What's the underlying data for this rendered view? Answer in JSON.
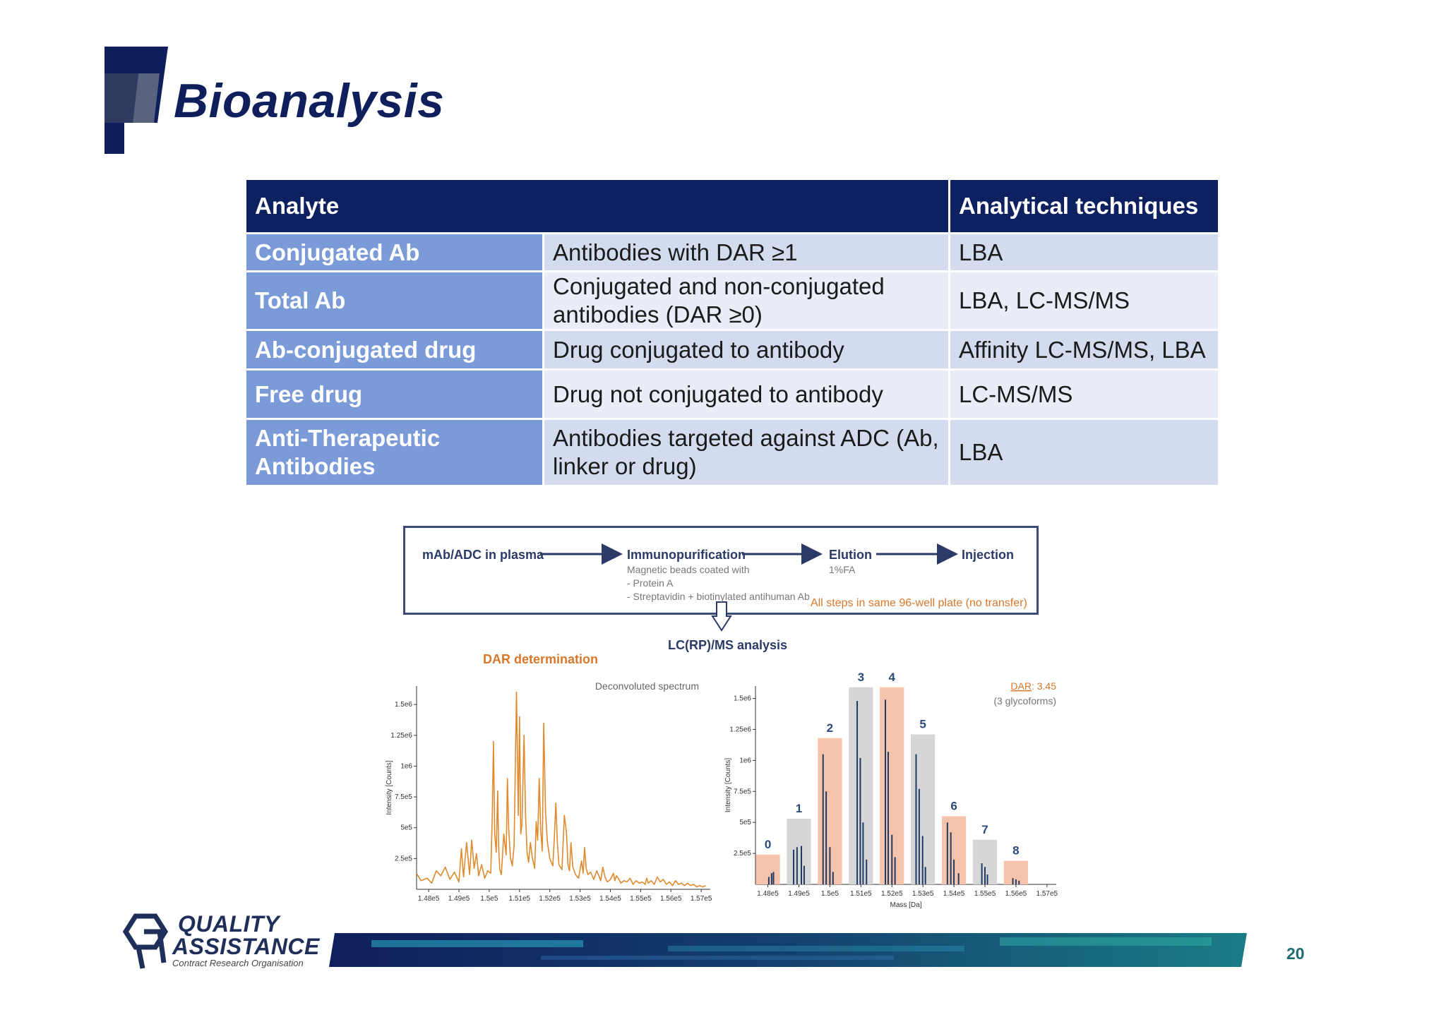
{
  "slide": {
    "title": "Bioanalysis",
    "page_number": "20",
    "brand": {
      "line1": "QUALITY",
      "line2": "ASSISTANCE",
      "tagline": "Contract Research Organisation"
    }
  },
  "table": {
    "headers": [
      "Analyte",
      "Analytical techniques"
    ],
    "rows": [
      {
        "name": "Conjugated Ab",
        "desc": "Antibodies with DAR ≥1",
        "tech": "LBA"
      },
      {
        "name": "Total Ab",
        "desc": "Conjugated and non-conjugated antibodies (DAR ≥0)",
        "tech": "LBA, LC-MS/MS"
      },
      {
        "name": "Ab-conjugated drug",
        "desc": "Drug conjugated to antibody",
        "tech": "Affinity LC-MS/MS, LBA"
      },
      {
        "name": "Free drug",
        "desc": "Drug not conjugated to antibody",
        "tech": "LC-MS/MS"
      },
      {
        "name": "Anti-Therapeutic Antibodies",
        "desc": "Antibodies targeted  against ADC (Ab, linker or drug)",
        "tech": "LBA"
      }
    ]
  },
  "workflow": {
    "step1": "mAb/ADC in plasma",
    "step2": "Immunopurification",
    "step2_sub": [
      "Magnetic beads coated with",
      "- Protein A",
      "- Streptavidin + biotinylated antihuman Ab"
    ],
    "step3": "Elution",
    "step3_sub": "1%FA",
    "step4": "Injection",
    "note": "All steps in same 96-well plate (no transfer)",
    "analysis": "LC(RP)/MS analysis",
    "dar_label": "DAR determination"
  },
  "chart_data": [
    {
      "type": "line",
      "title": "Deconvoluted  spectrum",
      "ylabel": "Intensity [Counts]",
      "xlabel": "",
      "x_ticks": [
        "1.48e5",
        "1.49e5",
        "1.5e5",
        "1.51e5",
        "1.52e5",
        "1.53e5",
        "1.54e5",
        "1.55e5",
        "1.56e5",
        "1.57e5"
      ],
      "y_ticks": [
        "2.5e5",
        "5e5",
        "7.5e5",
        "1e6",
        "1.25e6",
        "1.5e6"
      ],
      "xlim": [
        147600,
        157300
      ],
      "ylim": [
        0,
        1650000
      ],
      "grid": false,
      "color": "#e08a2e",
      "series": [
        {
          "x": [
            147600,
            147750,
            147950,
            148100,
            148250,
            148400,
            148550,
            148700,
            148850,
            149000,
            149080,
            149150,
            149250,
            149350,
            149420,
            149500,
            149580,
            149650,
            149750,
            149850,
            149950,
            150050,
            150100,
            150140,
            150180,
            150230,
            150280,
            150310,
            150350,
            150400,
            150480,
            150560,
            150600,
            150640,
            150700,
            150760,
            150820,
            150900,
            150960,
            151000,
            151040,
            151080,
            151150,
            151200,
            151250,
            151300,
            151360,
            151420,
            151500,
            151550,
            151600,
            151650,
            151700,
            151750,
            151800,
            151860,
            151920,
            152000,
            152100,
            152150,
            152200,
            152250,
            152300,
            152400,
            152480,
            152550,
            152600,
            152650,
            152700,
            152760,
            152850,
            152950,
            153050,
            153100,
            153150,
            153200,
            153260,
            153350,
            153450,
            153550,
            153620,
            153680,
            153750,
            153820,
            153900,
            154000,
            154100,
            154150,
            154200,
            154260,
            154350,
            154450,
            154550,
            154650,
            154750,
            154850,
            154950,
            155050,
            155150,
            155200,
            155250,
            155350,
            155450,
            155550,
            155650,
            155750,
            155850,
            155950,
            156050,
            156150,
            156250,
            156350,
            156450,
            156550,
            156650,
            156750,
            156850,
            156950,
            157050,
            157150
          ],
          "y": [
            130000,
            70000,
            90000,
            50000,
            150000,
            110000,
            180000,
            80000,
            140000,
            60000,
            330000,
            100000,
            380000,
            120000,
            400000,
            170000,
            290000,
            110000,
            200000,
            90000,
            150000,
            130000,
            600000,
            1200000,
            450000,
            300000,
            800000,
            350000,
            160000,
            120000,
            450000,
            280000,
            900000,
            500000,
            260000,
            190000,
            350000,
            1600000,
            600000,
            1400000,
            450000,
            520000,
            1250000,
            600000,
            300000,
            220000,
            380000,
            260000,
            170000,
            550000,
            400000,
            900000,
            480000,
            310000,
            1350000,
            620000,
            380000,
            250000,
            190000,
            420000,
            700000,
            380000,
            200000,
            160000,
            600000,
            460000,
            200000,
            150000,
            380000,
            180000,
            120000,
            90000,
            230000,
            130000,
            340000,
            170000,
            120000,
            140000,
            80000,
            150000,
            110000,
            70000,
            180000,
            100000,
            60000,
            80000,
            130000,
            70000,
            110000,
            90000,
            50000,
            70000,
            60000,
            90000,
            40000,
            70000,
            50000,
            60000,
            40000,
            90000,
            50000,
            70000,
            40000,
            100000,
            60000,
            80000,
            40000,
            60000,
            30000,
            70000,
            40000,
            50000,
            30000,
            50000,
            30000,
            40000,
            20000,
            30000,
            20000,
            30000
          ]
        }
      ]
    },
    {
      "type": "bar",
      "title": "",
      "ylabel": "Intensity [Counts]",
      "xlabel": "Mass [Da]",
      "x_ticks": [
        "1.48e5",
        "1.49e5",
        "1.5e5",
        "1.51e5",
        "1.52e5",
        "1.53e5",
        "1.54e5",
        "1.55e5",
        "1.56e5",
        "1.57e5"
      ],
      "y_ticks": [
        "2.5e5",
        "5e5",
        "7.5e5",
        "1e6",
        "1.25e6",
        "1.5e6"
      ],
      "xlim": [
        147600,
        157300
      ],
      "ylim": [
        0,
        1600000
      ],
      "annotation": {
        "dar_label": "DAR",
        "dar_value": ": 3.45",
        "note": "(3 glycoforms)"
      },
      "series": [
        {
          "name": "",
          "categories": [
            "0",
            "1",
            "2",
            "3",
            "4",
            "5",
            "6",
            "7",
            "8"
          ],
          "x": [
            148000,
            149000,
            150000,
            151000,
            152000,
            153000,
            154000,
            155000,
            156000
          ],
          "values": [
            240000,
            530000,
            1180000,
            1590000,
            1590000,
            1210000,
            550000,
            360000,
            190000
          ],
          "colors": [
            "#f6c3ac",
            "#d6d6d6",
            "#f6c3ac",
            "#d6d6d6",
            "#f6c3ac",
            "#d6d6d6",
            "#f6c3ac",
            "#d6d6d6",
            "#f6c3ac"
          ]
        },
        {
          "name": "",
          "x": [
            148030,
            148120,
            148180,
            148830,
            148940,
            149080,
            149170,
            149780,
            149880,
            150000,
            150100,
            150880,
            150980,
            151070,
            151180,
            151790,
            151880,
            152000,
            152100,
            152780,
            152880,
            152990,
            153080,
            153790,
            153900,
            154000,
            154150,
            154900,
            155000,
            155080,
            155900,
            156000,
            156100
          ],
          "y": [
            60000,
            90000,
            100000,
            280000,
            300000,
            310000,
            150000,
            1050000,
            750000,
            300000,
            100000,
            1480000,
            1020000,
            500000,
            200000,
            1490000,
            1070000,
            400000,
            220000,
            1050000,
            770000,
            390000,
            140000,
            500000,
            420000,
            200000,
            90000,
            170000,
            140000,
            80000,
            50000,
            40000,
            30000
          ],
          "color": "#1f3a63"
        }
      ]
    }
  ]
}
